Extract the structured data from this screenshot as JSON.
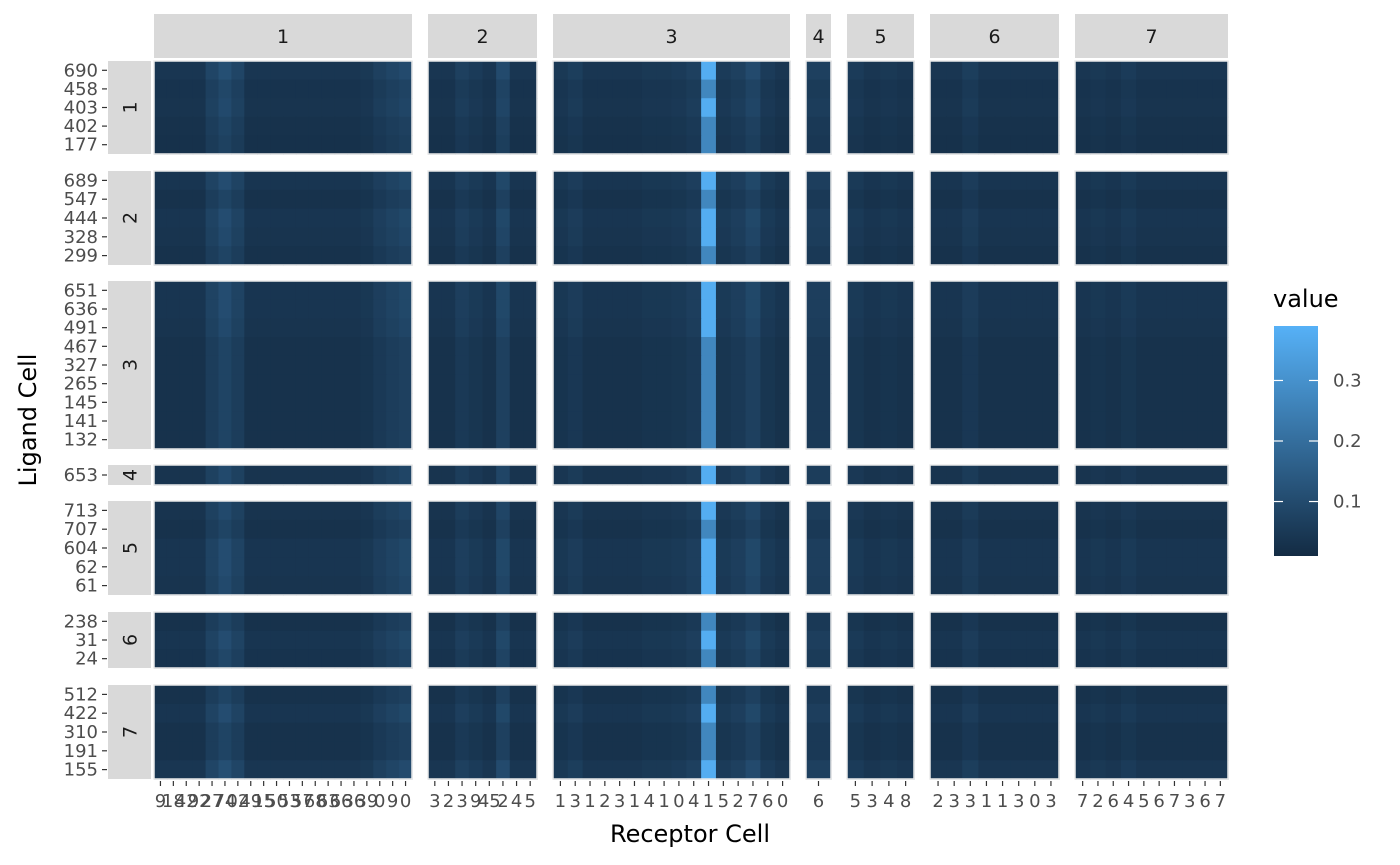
{
  "chart_data": {
    "type": "heatmap",
    "xlabel": "Receptor Cell",
    "ylabel": "Ligand Cell",
    "legend": {
      "title": "value",
      "position": "right",
      "ticks": [
        0.1,
        0.2,
        0.3
      ],
      "tick_labels": [
        "0.1",
        "0.2",
        "0.3"
      ],
      "range": [
        0.01,
        0.39
      ],
      "color_low": "#132B43",
      "color_high": "#56B1F7"
    },
    "col_groups": [
      {
        "label": "1",
        "n": 20,
        "ticks": [
          "9",
          "18",
          "42",
          "92",
          "27",
          "74",
          "02",
          "49",
          "15",
          "50",
          "53",
          "57",
          "68",
          "63",
          "66",
          "36",
          "39",
          "0",
          "9",
          "0"
        ],
        "profile": [
          0.03,
          0.03,
          0.03,
          0.03,
          0.06,
          0.08,
          0.06,
          0.03,
          0.03,
          0.03,
          0.03,
          0.03,
          0.03,
          0.03,
          0.03,
          0.03,
          0.035,
          0.05,
          0.06,
          0.07
        ]
      },
      {
        "label": "2",
        "n": 8,
        "ticks": [
          "3",
          "2",
          "3",
          "9",
          "45",
          "2",
          "4",
          "5"
        ],
        "profile": [
          0.03,
          0.03,
          0.05,
          0.04,
          0.03,
          0.07,
          0.03,
          0.03
        ]
      },
      {
        "label": "3",
        "n": 16,
        "ticks": [
          "1",
          "3",
          "1",
          "2",
          "3",
          "1",
          "4",
          "1",
          "0",
          "4",
          "1",
          "5",
          "2",
          "7",
          "6",
          "0"
        ],
        "profile": [
          0.035,
          0.045,
          0.03,
          0.03,
          0.03,
          0.03,
          0.035,
          0.035,
          0.04,
          0.05,
          0.27,
          0.04,
          0.05,
          0.07,
          0.04,
          0.03
        ]
      },
      {
        "label": "4",
        "n": 1,
        "ticks": [
          "6"
        ],
        "profile": [
          0.05
        ]
      },
      {
        "label": "5",
        "n": 4,
        "ticks": [
          "5",
          "3",
          "4",
          "8"
        ],
        "profile": [
          0.04,
          0.03,
          0.035,
          0.03
        ]
      },
      {
        "label": "6",
        "n": 8,
        "ticks": [
          "2",
          "3",
          "3",
          "1",
          "1",
          "3",
          "0",
          "3"
        ],
        "profile": [
          0.03,
          0.03,
          0.045,
          0.03,
          0.03,
          0.03,
          0.03,
          0.03
        ]
      },
      {
        "label": "7",
        "n": 10,
        "ticks": [
          "7",
          "2",
          "6",
          "4",
          "5",
          "6",
          "7",
          "3",
          "6",
          "7"
        ],
        "profile": [
          0.03,
          0.035,
          0.03,
          0.04,
          0.03,
          0.03,
          0.03,
          0.03,
          0.03,
          0.03
        ]
      }
    ],
    "row_groups": [
      {
        "label": "1",
        "ticks": [
          "690",
          "458",
          "403",
          "402",
          "177"
        ],
        "rowfactor": [
          1.4,
          1.1,
          1.2,
          1.0,
          0.9
        ],
        "span": 5
      },
      {
        "label": "2",
        "ticks": [
          "689",
          "547",
          "444",
          "328",
          "299"
        ],
        "rowfactor": [
          1.3,
          1.0,
          1.3,
          1.2,
          1.0
        ],
        "span": 5
      },
      {
        "label": "3",
        "ticks": [
          "651",
          "636",
          "491",
          "467",
          "327",
          "265",
          "145",
          "141",
          "132"
        ],
        "rowfactor": [
          1.3,
          1.3,
          1.2,
          1.0,
          1.0,
          1.0,
          1.0,
          1.0,
          1.0
        ],
        "span": 9
      },
      {
        "label": "4",
        "ticks": [
          "653"
        ],
        "rowfactor": [
          1.2
        ],
        "span": 1
      },
      {
        "label": "5",
        "ticks": [
          "713",
          "707",
          "604",
          "62",
          "61"
        ],
        "rowfactor": [
          1.2,
          1.0,
          1.3,
          1.3,
          1.2
        ],
        "span": 5
      },
      {
        "label": "6",
        "ticks": [
          "238",
          "31",
          "24"
        ],
        "rowfactor": [
          1.0,
          1.3,
          1.1
        ],
        "span": 3
      },
      {
        "label": "7",
        "ticks": [
          "512",
          "422",
          "310",
          "191",
          "155"
        ],
        "rowfactor": [
          1.0,
          1.3,
          1.0,
          1.0,
          1.4
        ],
        "span": 5
      }
    ]
  }
}
